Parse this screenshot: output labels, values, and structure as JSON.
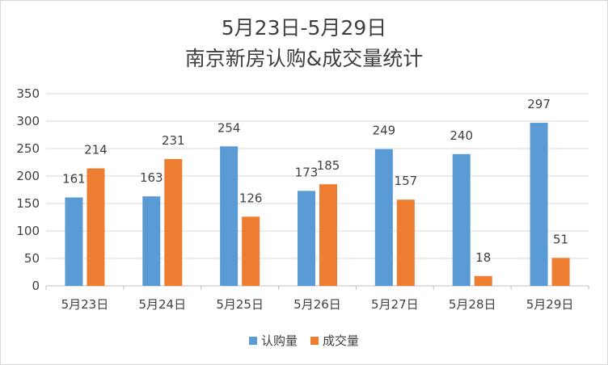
{
  "chart_data": {
    "type": "bar",
    "title_line1": "5月23日-5月29日",
    "title_line2": "南京新房认购&成交量统计",
    "categories": [
      "5月23日",
      "5月24日",
      "5月25日",
      "5月26日",
      "5月27日",
      "5月28日",
      "5月29日"
    ],
    "series": [
      {
        "name": "认购量",
        "color": "#5b9bd5",
        "values": [
          161,
          163,
          254,
          173,
          249,
          240,
          297
        ]
      },
      {
        "name": "成交量",
        "color": "#ed7d31",
        "values": [
          214,
          231,
          126,
          185,
          157,
          18,
          51
        ]
      }
    ],
    "ylim": [
      0,
      350
    ],
    "yticks": [
      0,
      50,
      100,
      150,
      200,
      250,
      300,
      350
    ],
    "grid": true,
    "legend_position": "bottom"
  }
}
